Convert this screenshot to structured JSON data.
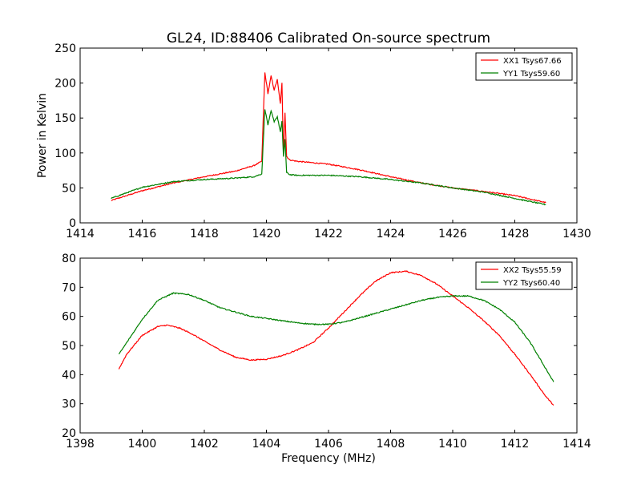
{
  "figure": {
    "title": "GL24, ID:88406 Calibrated On-source spectrum"
  },
  "chart_data": [
    {
      "type": "line",
      "title": "GL24, ID:88406 Calibrated On-source spectrum",
      "xlabel": "",
      "ylabel": "Power in Kelvin",
      "xlim": [
        1414,
        1430
      ],
      "ylim": [
        0,
        250
      ],
      "xticks": [
        "1414",
        "1416",
        "1418",
        "1420",
        "1422",
        "1424",
        "1426",
        "1428",
        "1430"
      ],
      "yticks": [
        "0",
        "50",
        "100",
        "150",
        "200",
        "250"
      ],
      "grid": false,
      "legend_position": "top-right",
      "series": [
        {
          "name": "XX1 Tsys67.66",
          "color": "#ff0000",
          "x": [
            1415.0,
            1416.0,
            1417.0,
            1418.0,
            1419.0,
            1419.6,
            1419.85,
            1419.95,
            1420.05,
            1420.15,
            1420.25,
            1420.35,
            1420.45,
            1420.5,
            1420.55,
            1420.6,
            1420.65,
            1420.75,
            1421.0,
            1422.0,
            1423.0,
            1424.0,
            1425.0,
            1426.0,
            1427.0,
            1428.0,
            1429.0
          ],
          "y": [
            32,
            46,
            57,
            66,
            74,
            82,
            88,
            215,
            185,
            210,
            190,
            205,
            170,
            200,
            100,
            158,
            95,
            90,
            88,
            84,
            76,
            66,
            57,
            50,
            45,
            39,
            29
          ]
        },
        {
          "name": "YY1 Tsys59.60",
          "color": "#008000",
          "x": [
            1415.0,
            1416.0,
            1417.0,
            1418.0,
            1419.0,
            1419.6,
            1419.85,
            1419.95,
            1420.05,
            1420.15,
            1420.25,
            1420.35,
            1420.45,
            1420.5,
            1420.55,
            1420.6,
            1420.65,
            1420.75,
            1421.0,
            1422.0,
            1423.0,
            1424.0,
            1425.0,
            1426.0,
            1427.0,
            1428.0,
            1429.0
          ],
          "y": [
            35,
            51,
            59,
            62,
            64,
            66,
            70,
            163,
            140,
            160,
            145,
            152,
            130,
            145,
            95,
            120,
            72,
            69,
            68,
            68,
            66,
            62,
            57,
            50,
            44,
            35,
            26
          ]
        }
      ]
    },
    {
      "type": "line",
      "title": "",
      "xlabel": "Frequency (MHz)",
      "ylabel": "",
      "xlim": [
        1398,
        1414
      ],
      "ylim": [
        20,
        80
      ],
      "xticks": [
        "1398",
        "1400",
        "1402",
        "1404",
        "1406",
        "1408",
        "1410",
        "1412",
        "1414"
      ],
      "yticks": [
        "20",
        "30",
        "40",
        "50",
        "60",
        "70",
        "80"
      ],
      "grid": false,
      "legend_position": "top-right",
      "series": [
        {
          "name": "XX2 Tsys55.59",
          "color": "#ff0000",
          "x": [
            1399.25,
            1399.5,
            1400.0,
            1400.5,
            1400.8,
            1401.2,
            1401.6,
            1402.0,
            1402.5,
            1403.0,
            1403.5,
            1404.0,
            1404.5,
            1405.0,
            1405.5,
            1406.0,
            1406.5,
            1407.0,
            1407.5,
            1408.0,
            1408.5,
            1409.0,
            1409.5,
            1410.0,
            1410.5,
            1411.0,
            1411.5,
            1412.0,
            1412.5,
            1413.0,
            1413.25
          ],
          "y": [
            42,
            47,
            53.5,
            56.5,
            57,
            56,
            54,
            51.5,
            48.5,
            46,
            45,
            45.3,
            46.5,
            48.5,
            51,
            56,
            61.5,
            67,
            72,
            75,
            75.5,
            74,
            71,
            67,
            63,
            58.5,
            53.5,
            47,
            40,
            32.5,
            29.5
          ]
        },
        {
          "name": "YY2 Tsys60.40",
          "color": "#008000",
          "x": [
            1399.25,
            1399.5,
            1400.0,
            1400.5,
            1401.0,
            1401.5,
            1402.0,
            1402.5,
            1403.0,
            1403.5,
            1404.0,
            1404.5,
            1405.0,
            1405.5,
            1406.0,
            1406.5,
            1407.0,
            1407.5,
            1408.0,
            1408.5,
            1409.0,
            1409.5,
            1410.0,
            1410.5,
            1411.0,
            1411.5,
            1412.0,
            1412.5,
            1413.0,
            1413.25
          ],
          "y": [
            47,
            51,
            59,
            65.5,
            68,
            67.5,
            65.5,
            63,
            61.5,
            60,
            59.3,
            58.5,
            57.8,
            57.3,
            57.3,
            58,
            59.5,
            61,
            62.5,
            64,
            65.5,
            66.5,
            67,
            67,
            65.5,
            62.5,
            58,
            51,
            42,
            37.5
          ]
        }
      ]
    }
  ]
}
